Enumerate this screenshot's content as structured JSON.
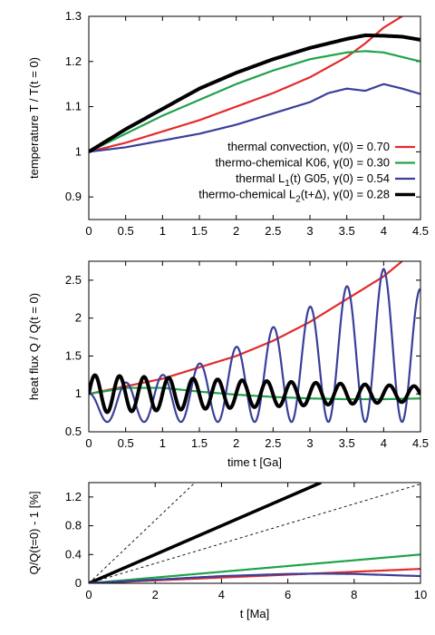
{
  "chart_data": [
    {
      "type": "line",
      "xlim": [
        0,
        4.5
      ],
      "ylim": [
        0.85,
        1.3
      ],
      "xticks": [
        "0",
        "0.5",
        "1",
        "1.5",
        "2",
        "2.5",
        "3",
        "3.5",
        "4",
        "4.5"
      ],
      "yticks": [
        "0.9",
        "1",
        "1.1",
        "1.2",
        "1.3"
      ],
      "xlabel": "",
      "ylabel": "temperature T / T(t = 0)",
      "legend_placement": "bottom-right",
      "series": [
        {
          "name": "thermal convection, γ(0) = 0.70",
          "color": "#e32b2b",
          "x": [
            0,
            0.5,
            1,
            1.5,
            2,
            2.5,
            3,
            3.5,
            3.75,
            4,
            4.25
          ],
          "y": [
            1.0,
            1.02,
            1.045,
            1.07,
            1.1,
            1.13,
            1.165,
            1.21,
            1.24,
            1.275,
            1.3
          ]
        },
        {
          "name": "thermo-chemical K06, γ(0) = 0.30",
          "color": "#1fa34a",
          "x": [
            0,
            0.5,
            1,
            1.5,
            2,
            2.5,
            3,
            3.5,
            3.75,
            4,
            4.5
          ],
          "y": [
            1.0,
            1.04,
            1.08,
            1.115,
            1.15,
            1.18,
            1.205,
            1.22,
            1.223,
            1.22,
            1.2
          ]
        },
        {
          "name": "thermal L1(t) G05, γ(0) = 0.54",
          "color": "#3a3f9a",
          "x": [
            0,
            0.5,
            1,
            1.5,
            2,
            2.5,
            3,
            3.25,
            3.5,
            3.75,
            4,
            4.25,
            4.5
          ],
          "y": [
            1.0,
            1.01,
            1.025,
            1.04,
            1.06,
            1.085,
            1.11,
            1.13,
            1.14,
            1.135,
            1.15,
            1.14,
            1.128
          ]
        },
        {
          "name": "thermo-chemical L2(t+Δ), γ(0) = 0.28",
          "color": "#000000",
          "x": [
            0,
            0.5,
            1,
            1.5,
            2,
            2.5,
            3,
            3.5,
            3.75,
            4,
            4.25,
            4.5
          ],
          "y": [
            1.0,
            1.05,
            1.095,
            1.14,
            1.175,
            1.205,
            1.23,
            1.25,
            1.258,
            1.257,
            1.255,
            1.248
          ]
        }
      ]
    },
    {
      "type": "line",
      "xlim": [
        0,
        4.5
      ],
      "ylim": [
        0.5,
        2.75
      ],
      "xticks": [
        "0",
        "0.5",
        "1",
        "1.5",
        "2",
        "2.5",
        "3",
        "3.5",
        "4",
        "4.5"
      ],
      "yticks": [
        "0.5",
        "1",
        "1.5",
        "2",
        "2.5"
      ],
      "xlabel": "time t [Ga]",
      "ylabel": "heat flux Q / Q(t = 0)",
      "series": [
        {
          "name": "thermal convection",
          "color": "#e32b2b",
          "x": [
            0,
            0.5,
            1,
            1.5,
            2,
            2.5,
            3,
            3.5,
            4,
            4.25
          ],
          "y": [
            1.0,
            1.1,
            1.2,
            1.35,
            1.5,
            1.7,
            1.95,
            2.25,
            2.55,
            2.75
          ]
        },
        {
          "name": "thermo-chemical K06",
          "color": "#1fa34a",
          "x": [
            0,
            0.5,
            1,
            1.5,
            2,
            2.5,
            3,
            3.5,
            4,
            4.5
          ],
          "y": [
            1.0,
            1.08,
            1.08,
            1.03,
            0.99,
            0.96,
            0.94,
            0.93,
            0.93,
            0.94
          ]
        },
        {
          "name": "thermal L1(t) G05",
          "color": "#3a3f9a",
          "oscillation": {
            "period": 0.5,
            "trough": 0.63,
            "peaks": [
              [
                0.0,
                1.0
              ],
              [
                0.5,
                1.15
              ],
              [
                1.0,
                1.25
              ],
              [
                1.5,
                1.4
              ],
              [
                2.0,
                1.62
              ],
              [
                2.5,
                1.88
              ],
              [
                3.0,
                2.15
              ],
              [
                3.5,
                2.42
              ],
              [
                4.0,
                2.65
              ],
              [
                4.5,
                2.38
              ]
            ]
          }
        },
        {
          "name": "thermo-chemical L2(t+Δ)",
          "color": "#000000",
          "oscillation": {
            "period": 0.333,
            "center": 1.0,
            "amplitude_start": 0.25,
            "amplitude_end": 0.1
          }
        }
      ]
    },
    {
      "type": "line",
      "xlim": [
        0,
        10
      ],
      "ylim": [
        0,
        1.4
      ],
      "xticks": [
        "0",
        "2",
        "4",
        "6",
        "8",
        "10"
      ],
      "yticks": [
        "0",
        "0.4",
        "0.8",
        "1.2"
      ],
      "xlabel": "t [Ma]",
      "ylabel": "Q/Q(t=0) - 1 [%]",
      "series": [
        {
          "color": "#000000",
          "style": "dashed",
          "x": [
            0,
            3.2
          ],
          "y": [
            0,
            1.4
          ]
        },
        {
          "color": "#000000",
          "style": "dashed",
          "x": [
            0,
            10
          ],
          "y": [
            0,
            1.38
          ]
        },
        {
          "color": "#000000",
          "style": "thick",
          "x": [
            0,
            7.0
          ],
          "y": [
            0,
            1.4
          ]
        },
        {
          "color": "#1fa34a",
          "x": [
            0,
            2,
            4,
            6,
            8,
            10
          ],
          "y": [
            0,
            0.08,
            0.16,
            0.24,
            0.32,
            0.4
          ]
        },
        {
          "color": "#e32b2b",
          "x": [
            0,
            2,
            4,
            6,
            8,
            10
          ],
          "y": [
            0,
            0.04,
            0.08,
            0.12,
            0.16,
            0.2
          ]
        },
        {
          "color": "#3a3f9a",
          "x": [
            0,
            2,
            4,
            6,
            7,
            8,
            10
          ],
          "y": [
            0,
            0.05,
            0.1,
            0.13,
            0.135,
            0.13,
            0.1
          ]
        }
      ]
    }
  ]
}
